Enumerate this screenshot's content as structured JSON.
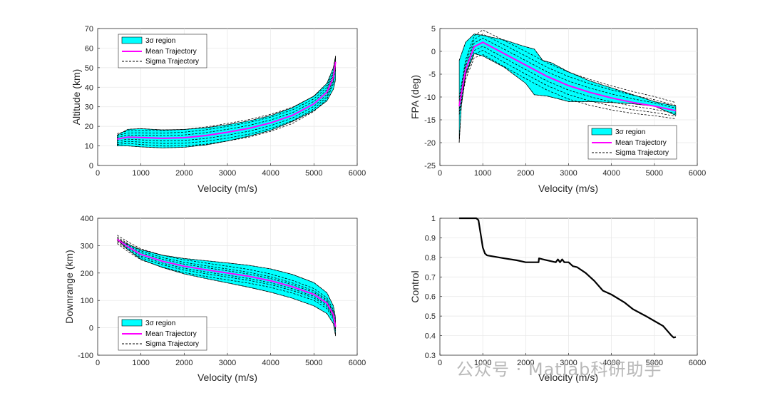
{
  "watermark": "公众号 · Matlab科研助手",
  "chart_data": [
    {
      "type": "line",
      "title": "",
      "xlabel": "Velocity (m/s)",
      "ylabel": "Altitude (km)",
      "xlim": [
        0,
        6000
      ],
      "ylim": [
        0,
        70
      ],
      "xticks": [
        0,
        1000,
        2000,
        3000,
        4000,
        5000,
        6000
      ],
      "yticks": [
        0,
        10,
        20,
        30,
        40,
        50,
        60,
        70
      ],
      "legend": [
        "3σ region",
        "Mean Trajectory",
        "Sigma Trajectory"
      ],
      "legend_position": "top-left",
      "band_upper": [
        [
          450,
          15.5
        ],
        [
          700,
          18.5
        ],
        [
          1000,
          18.8
        ],
        [
          1500,
          18.2
        ],
        [
          2000,
          18.4
        ],
        [
          2500,
          19.3
        ],
        [
          3000,
          20.8
        ],
        [
          3500,
          22.8
        ],
        [
          4000,
          25.5
        ],
        [
          4500,
          29.5
        ],
        [
          5000,
          35.5
        ],
        [
          5300,
          42
        ],
        [
          5450,
          50
        ],
        [
          5500,
          56
        ]
      ],
      "band_lower": [
        [
          450,
          10
        ],
        [
          700,
          10
        ],
        [
          1000,
          9.5
        ],
        [
          1500,
          9.0
        ],
        [
          2000,
          9.3
        ],
        [
          2500,
          10.5
        ],
        [
          3000,
          12.5
        ],
        [
          3500,
          15
        ],
        [
          4000,
          18
        ],
        [
          4500,
          22.5
        ],
        [
          5000,
          28
        ],
        [
          5300,
          33
        ],
        [
          5450,
          39
        ],
        [
          5500,
          44
        ]
      ],
      "mean": [
        [
          450,
          13.5
        ],
        [
          700,
          14.5
        ],
        [
          1000,
          14.3
        ],
        [
          1500,
          13.9
        ],
        [
          2000,
          14.2
        ],
        [
          2500,
          15.3
        ],
        [
          3000,
          17
        ],
        [
          3500,
          19
        ],
        [
          4000,
          21.8
        ],
        [
          4500,
          25.6
        ],
        [
          5000,
          31.5
        ],
        [
          5300,
          37.5
        ],
        [
          5450,
          45
        ],
        [
          5500,
          53
        ]
      ],
      "sigma_spread": [
        -4.5,
        -3,
        -1.5,
        1.5,
        3,
        4.5
      ]
    },
    {
      "type": "line",
      "title": "",
      "xlabel": "Velocity (m/s)",
      "ylabel": "FPA (deg)",
      "xlim": [
        0,
        6000
      ],
      "ylim": [
        -25,
        5
      ],
      "xticks": [
        0,
        1000,
        2000,
        3000,
        4000,
        5000,
        6000
      ],
      "yticks": [
        -25,
        -20,
        -15,
        -10,
        -5,
        0,
        5
      ],
      "legend": [
        "3σ region",
        "Mean Trajectory",
        "Sigma Trajectory"
      ],
      "legend_position": "bottom-right",
      "band_upper": [
        [
          450,
          -2
        ],
        [
          600,
          2
        ],
        [
          800,
          3.8
        ],
        [
          1000,
          3.5
        ],
        [
          1500,
          2.5
        ],
        [
          2000,
          1
        ],
        [
          2200,
          0.5
        ],
        [
          2400,
          -2
        ],
        [
          2600,
          -2.5
        ],
        [
          2800,
          -3.5
        ],
        [
          3000,
          -4.5
        ],
        [
          3500,
          -6.5
        ],
        [
          4000,
          -8
        ],
        [
          4500,
          -9.5
        ],
        [
          5000,
          -11
        ],
        [
          5500,
          -12
        ]
      ],
      "band_lower": [
        [
          450,
          -20
        ],
        [
          500,
          -12
        ],
        [
          600,
          -5
        ],
        [
          800,
          -0.5
        ],
        [
          1000,
          -1
        ],
        [
          1500,
          -3.5
        ],
        [
          2000,
          -7
        ],
        [
          2200,
          -9.5
        ],
        [
          2500,
          -9.8
        ],
        [
          2800,
          -10.5
        ],
        [
          3000,
          -11
        ],
        [
          3500,
          -11
        ],
        [
          4000,
          -11.2
        ],
        [
          4500,
          -11.5
        ],
        [
          5000,
          -12
        ],
        [
          5500,
          -14
        ]
      ],
      "mean": [
        [
          450,
          -12
        ],
        [
          600,
          -4
        ],
        [
          800,
          1
        ],
        [
          1000,
          2
        ],
        [
          1500,
          -0.5
        ],
        [
          2000,
          -3
        ],
        [
          2500,
          -5.5
        ],
        [
          3000,
          -7.5
        ],
        [
          3500,
          -9
        ],
        [
          4000,
          -10.2
        ],
        [
          4500,
          -11.2
        ],
        [
          5000,
          -12
        ],
        [
          5500,
          -13
        ]
      ],
      "sigma_spread": [
        -3,
        -2,
        -1,
        1,
        2,
        3
      ]
    },
    {
      "type": "line",
      "title": "",
      "xlabel": "Velocity (m/s)",
      "ylabel": "Downrange (km)",
      "xlim": [
        0,
        6000
      ],
      "ylim": [
        -100,
        400
      ],
      "xticks": [
        0,
        1000,
        2000,
        3000,
        4000,
        5000,
        6000
      ],
      "yticks": [
        -100,
        0,
        100,
        200,
        300,
        400
      ],
      "legend": [
        "3σ region",
        "Mean Trajectory",
        "Sigma Trajectory"
      ],
      "legend_position": "bottom-left",
      "band_upper": [
        [
          450,
          323
        ],
        [
          700,
          305
        ],
        [
          1000,
          285
        ],
        [
          1500,
          265
        ],
        [
          2000,
          253
        ],
        [
          2500,
          245
        ],
        [
          3000,
          237
        ],
        [
          3500,
          228
        ],
        [
          4000,
          215
        ],
        [
          4500,
          195
        ],
        [
          5000,
          165
        ],
        [
          5300,
          128
        ],
        [
          5450,
          80
        ],
        [
          5500,
          35
        ]
      ],
      "band_lower": [
        [
          450,
          323
        ],
        [
          700,
          285
        ],
        [
          1000,
          250
        ],
        [
          1500,
          220
        ],
        [
          2000,
          197
        ],
        [
          2500,
          180
        ],
        [
          3000,
          164
        ],
        [
          3500,
          148
        ],
        [
          4000,
          130
        ],
        [
          4500,
          108
        ],
        [
          5000,
          80
        ],
        [
          5300,
          52
        ],
        [
          5450,
          15
        ],
        [
          5500,
          -30
        ]
      ],
      "mean": [
        [
          450,
          323
        ],
        [
          700,
          296
        ],
        [
          1000,
          268
        ],
        [
          1500,
          243
        ],
        [
          2000,
          225
        ],
        [
          2500,
          212
        ],
        [
          3000,
          200
        ],
        [
          3500,
          188
        ],
        [
          4000,
          172
        ],
        [
          4500,
          150
        ],
        [
          5000,
          122
        ],
        [
          5300,
          90
        ],
        [
          5450,
          48
        ],
        [
          5500,
          3
        ]
      ],
      "sigma_spread": [
        -25,
        -15,
        -8,
        8,
        15,
        25
      ]
    },
    {
      "type": "line",
      "title": "",
      "xlabel": "Velocity (m/s)",
      "ylabel": "Control",
      "xlim": [
        0,
        6000
      ],
      "ylim": [
        0.3,
        1
      ],
      "xticks": [
        0,
        1000,
        2000,
        3000,
        4000,
        5000,
        6000
      ],
      "yticks": [
        0.3,
        0.4,
        0.5,
        0.6,
        0.7,
        0.8,
        0.9,
        1
      ],
      "series": [
        {
          "name": "Control",
          "x": [
            450,
            850,
            900,
            1000,
            1050,
            1100,
            1500,
            1800,
            2000,
            2300,
            2310,
            2400,
            2700,
            2750,
            2800,
            2850,
            2900,
            3000,
            3100,
            3200,
            3400,
            3600,
            3800,
            4000,
            4300,
            4500,
            4800,
            5000,
            5200,
            5300,
            5400,
            5450,
            5500
          ],
          "y": [
            1,
            1,
            0.99,
            0.85,
            0.82,
            0.81,
            0.795,
            0.785,
            0.775,
            0.775,
            0.795,
            0.79,
            0.775,
            0.79,
            0.775,
            0.79,
            0.775,
            0.775,
            0.755,
            0.75,
            0.72,
            0.68,
            0.63,
            0.61,
            0.57,
            0.535,
            0.5,
            0.475,
            0.45,
            0.425,
            0.4,
            0.39,
            0.393
          ]
        }
      ]
    }
  ],
  "legend_text": {
    "region": "3σ region",
    "mean": "Mean Trajectory",
    "sigma": "Sigma Trajectory"
  }
}
